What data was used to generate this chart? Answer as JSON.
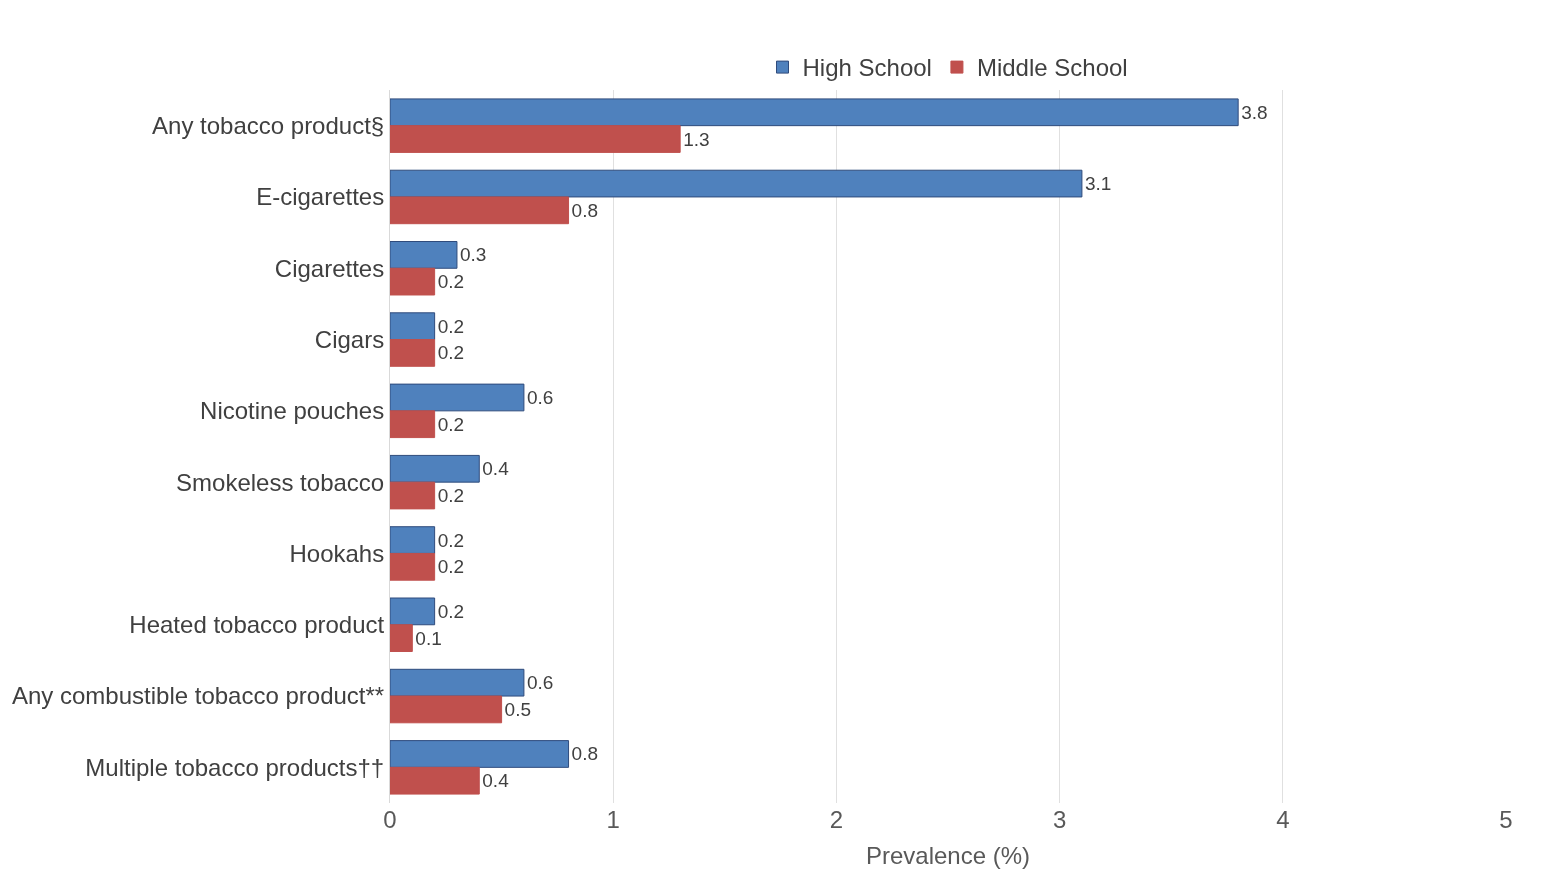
{
  "chart_data": {
    "type": "bar",
    "orientation": "horizontal",
    "xlabel": "Prevalence (%)",
    "categories": [
      "Any tobacco product§",
      "E-cigarettes",
      "Cigarettes",
      "Cigars",
      "Nicotine pouches",
      "Smokeless tobacco",
      "Hookahs",
      "Heated tobacco product",
      "Any combustible tobacco product**",
      "Multiple tobacco products††"
    ],
    "series": [
      {
        "name": "High School",
        "color": "#4f81bd",
        "values": [
          3.8,
          3.1,
          0.3,
          0.2,
          0.6,
          0.4,
          0.2,
          0.2,
          0.6,
          0.8
        ]
      },
      {
        "name": "Middle School",
        "color": "#c0504d",
        "values": [
          1.3,
          0.8,
          0.2,
          0.2,
          0.2,
          0.2,
          0.2,
          0.1,
          0.5,
          0.4
        ]
      }
    ],
    "xlim": [
      0,
      5
    ],
    "xticks": [
      0,
      1,
      2,
      3,
      4,
      5
    ],
    "grid": "x",
    "legend": "top",
    "data_labels": true
  }
}
